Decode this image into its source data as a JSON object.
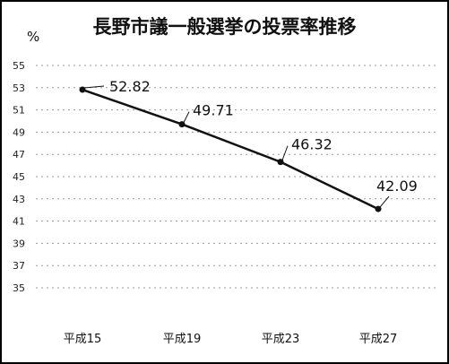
{
  "chart_data": {
    "type": "line",
    "title": "長野市議一般選挙の投票率推移",
    "unit_label": "%",
    "categories": [
      "平成15",
      "平成19",
      "平成23",
      "平成27"
    ],
    "values": [
      52.82,
      49.71,
      46.32,
      42.09
    ],
    "data_labels": [
      "52.82",
      "49.71",
      "46.32",
      "42.09"
    ],
    "y_ticks": [
      35,
      37,
      39,
      41,
      43,
      45,
      47,
      49,
      51,
      53,
      55
    ],
    "ylim": [
      35,
      55
    ],
    "grid": true,
    "legend": "none",
    "colors": {
      "line": "#111111",
      "grid": "#9a9a9a",
      "frame": "#000000"
    }
  }
}
